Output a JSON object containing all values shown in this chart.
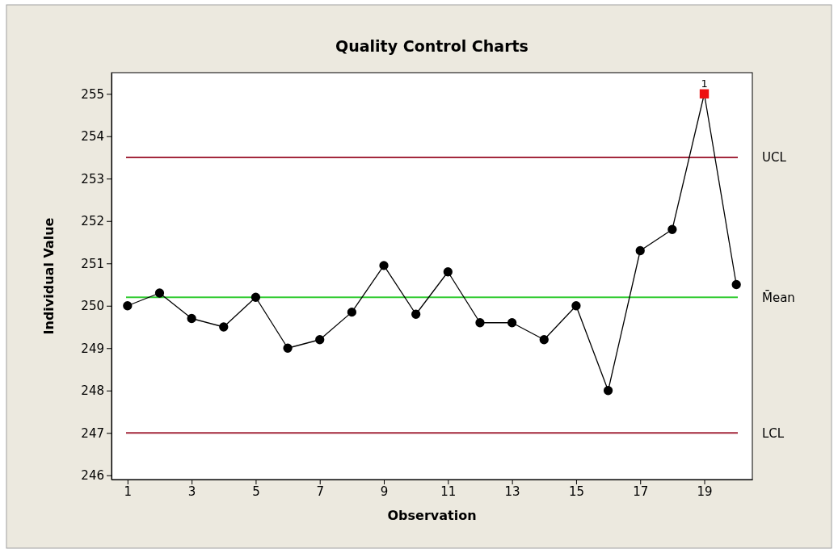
{
  "chart_data": {
    "type": "line",
    "title": "Quality Control Charts",
    "xlabel": "Observation",
    "ylabel": "Individual Value",
    "xlim": [
      0.5,
      20.5
    ],
    "xticks": [
      1,
      3,
      5,
      7,
      9,
      11,
      13,
      15,
      17,
      19
    ],
    "ylim": [
      245.9,
      255.5
    ],
    "yticks": [
      246,
      247,
      248,
      249,
      250,
      251,
      252,
      253,
      254,
      255
    ],
    "grid": false,
    "series": [
      {
        "color": "#000000",
        "marker": "none",
        "x": [
          1,
          2,
          3,
          4,
          5,
          6,
          7,
          8,
          9,
          10,
          11,
          12,
          13,
          14,
          15,
          16,
          17,
          18,
          19,
          20
        ],
        "values": [
          250.0,
          250.3,
          249.7,
          249.5,
          250.2,
          249.0,
          249.2,
          249.85,
          250.95,
          249.8,
          250.8,
          249.6,
          249.6,
          249.2,
          250.0,
          248.0,
          251.3,
          251.8,
          255.0,
          250.5
        ]
      },
      {
        "type": "scatter",
        "color": "#000000",
        "marker": "circle",
        "x": [
          1,
          2,
          3,
          4,
          5,
          6,
          7,
          8,
          9,
          10,
          11,
          12,
          13,
          14,
          15,
          16,
          17,
          18,
          20
        ],
        "values": [
          250.0,
          250.3,
          249.7,
          249.5,
          250.2,
          249.0,
          249.2,
          249.85,
          250.95,
          249.8,
          250.8,
          249.6,
          249.6,
          249.2,
          250.0,
          248.0,
          251.3,
          251.8,
          250.5
        ]
      },
      {
        "type": "scatter",
        "color": "#ee1111",
        "marker": "square",
        "x": [
          19
        ],
        "values": [
          255.0
        ]
      }
    ],
    "ref_lines": [
      {
        "axis": "y",
        "value": 253.5,
        "label": "UCL",
        "color": "#a3283c"
      },
      {
        "axis": "y",
        "value": 250.2,
        "label": "M̄ean",
        "color": "#33cc33"
      },
      {
        "axis": "y",
        "value": 247.0,
        "label": "LCL",
        "color": "#a3283c"
      }
    ],
    "annotations": [
      {
        "text": "1",
        "x": 19,
        "y": 255.0
      }
    ]
  }
}
